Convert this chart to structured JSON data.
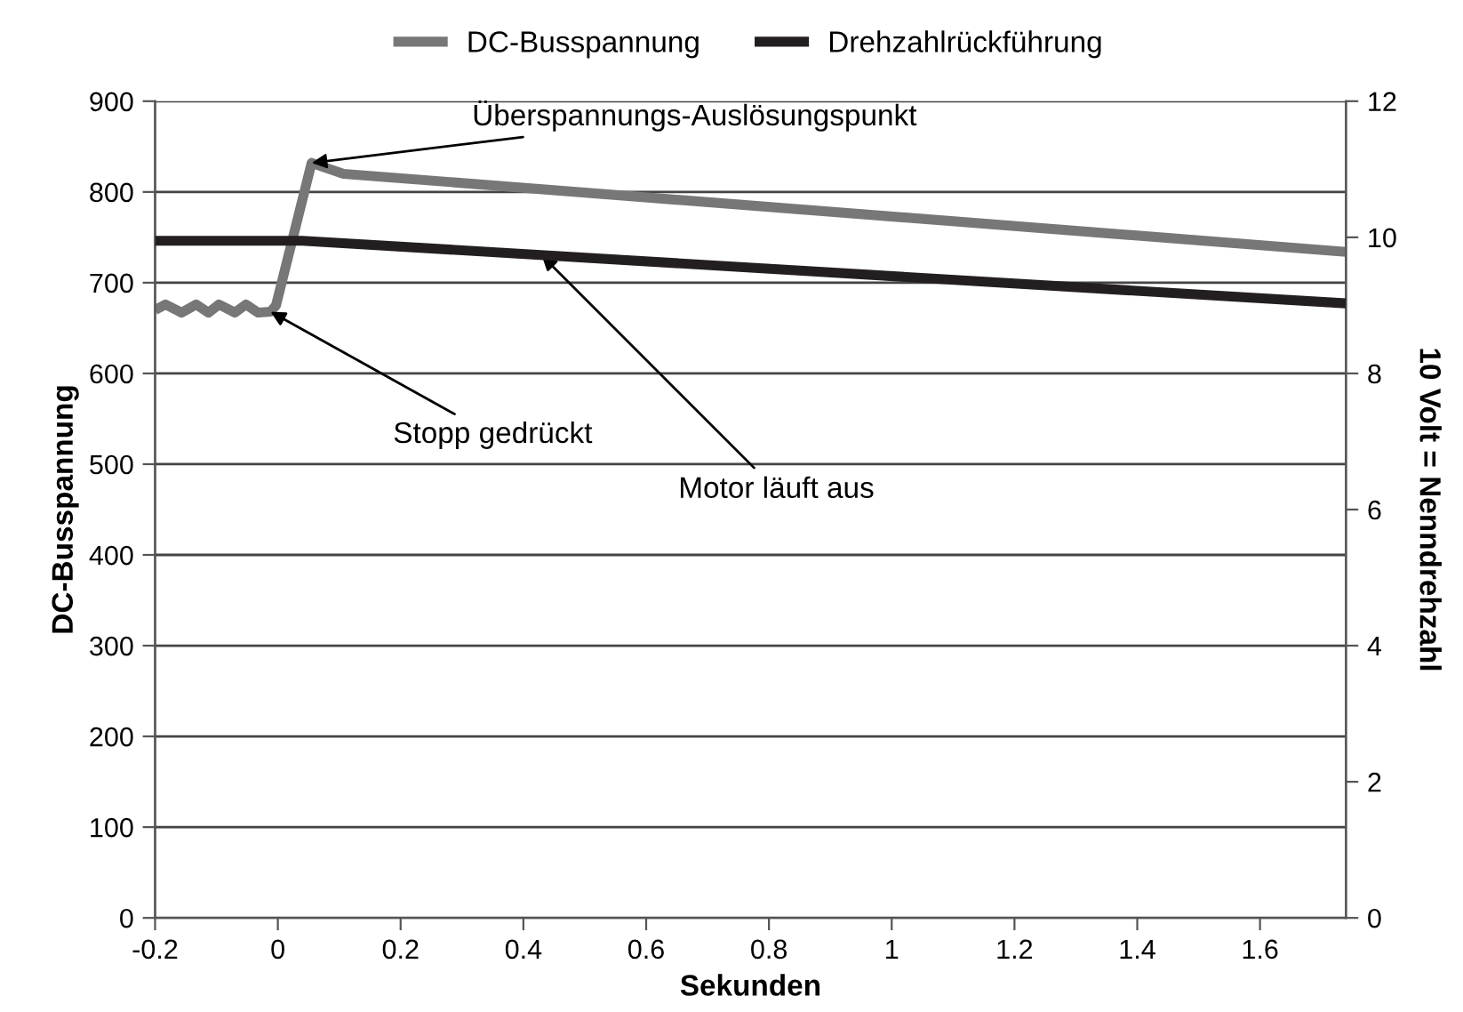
{
  "chart_data": {
    "type": "line",
    "xlabel": "Sekunden",
    "ylabel": "DC-Busspannung",
    "y2label": "10 Volt = Nenndrehzahl",
    "xlim": [
      -0.2,
      1.74
    ],
    "xticks": [
      -0.2,
      0,
      0.2,
      0.4,
      0.6,
      0.8,
      1,
      1.2,
      1.4,
      1.6
    ],
    "ylim": [
      0,
      900
    ],
    "yticks": [
      0,
      100,
      200,
      300,
      400,
      500,
      600,
      700,
      800,
      900
    ],
    "y2lim": [
      0,
      12
    ],
    "y2ticks": [
      0,
      2,
      4,
      6,
      8,
      10,
      12
    ],
    "grid": "y",
    "legend": "top",
    "marker": "none",
    "line_style": "solid",
    "series": [
      {
        "name": "DC-Busspannung",
        "color": "#777777",
        "x": [
          -0.2,
          -0.183,
          -0.157,
          -0.133,
          -0.113,
          -0.096,
          -0.07,
          -0.052,
          -0.032,
          -0.012,
          -0.003,
          0.055,
          0.107,
          1.74
        ],
        "values": [
          670,
          676,
          667,
          676,
          667,
          676,
          667,
          676,
          667,
          668,
          675,
          832,
          820,
          734
        ]
      },
      {
        "name": "Drehzahlrückführung",
        "color": "#231f20",
        "axis": "y2",
        "x": [
          -0.2,
          0.04,
          1.74
        ],
        "values": [
          9.95,
          9.95,
          9.03
        ]
      }
    ],
    "annotations": [
      {
        "text": "Überspannungs-Auslösungspunkt",
        "x": 0.055,
        "y": 832
      },
      {
        "text": "Stopp gedrückt",
        "x": -0.012,
        "y": 668
      },
      {
        "text": "Motor läuft aus",
        "x": 0.43,
        "y": 730
      }
    ]
  }
}
